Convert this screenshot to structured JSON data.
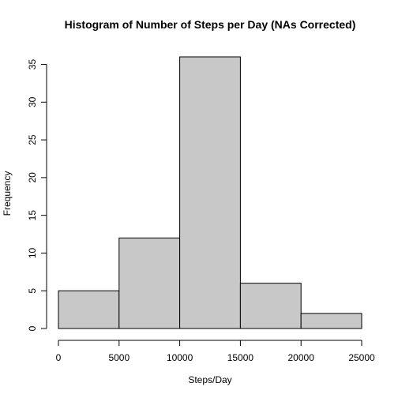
{
  "chart_data": {
    "type": "bar",
    "subtype": "histogram",
    "title": "Histogram of Number of Steps per Day (NAs Corrected)",
    "xlabel": "Steps/Day",
    "ylabel": "Frequency",
    "bin_edges": [
      0,
      5000,
      10000,
      15000,
      20000,
      25000
    ],
    "values": [
      5,
      12,
      36,
      6,
      2
    ],
    "xlim": [
      0,
      25000
    ],
    "ylim": [
      0,
      36
    ],
    "x_ticks": [
      0,
      5000,
      10000,
      15000,
      20000,
      25000
    ],
    "x_tick_labels": [
      "0",
      "5000",
      "10000",
      "15000",
      "20000",
      "25000"
    ],
    "y_ticks": [
      0,
      5,
      10,
      15,
      20,
      25,
      30,
      35
    ],
    "y_tick_labels": [
      "0",
      "5",
      "10",
      "15",
      "20",
      "25",
      "30",
      "35"
    ],
    "grid": false,
    "bar_fill": "#c8c8c8",
    "bar_stroke": "#000000"
  }
}
